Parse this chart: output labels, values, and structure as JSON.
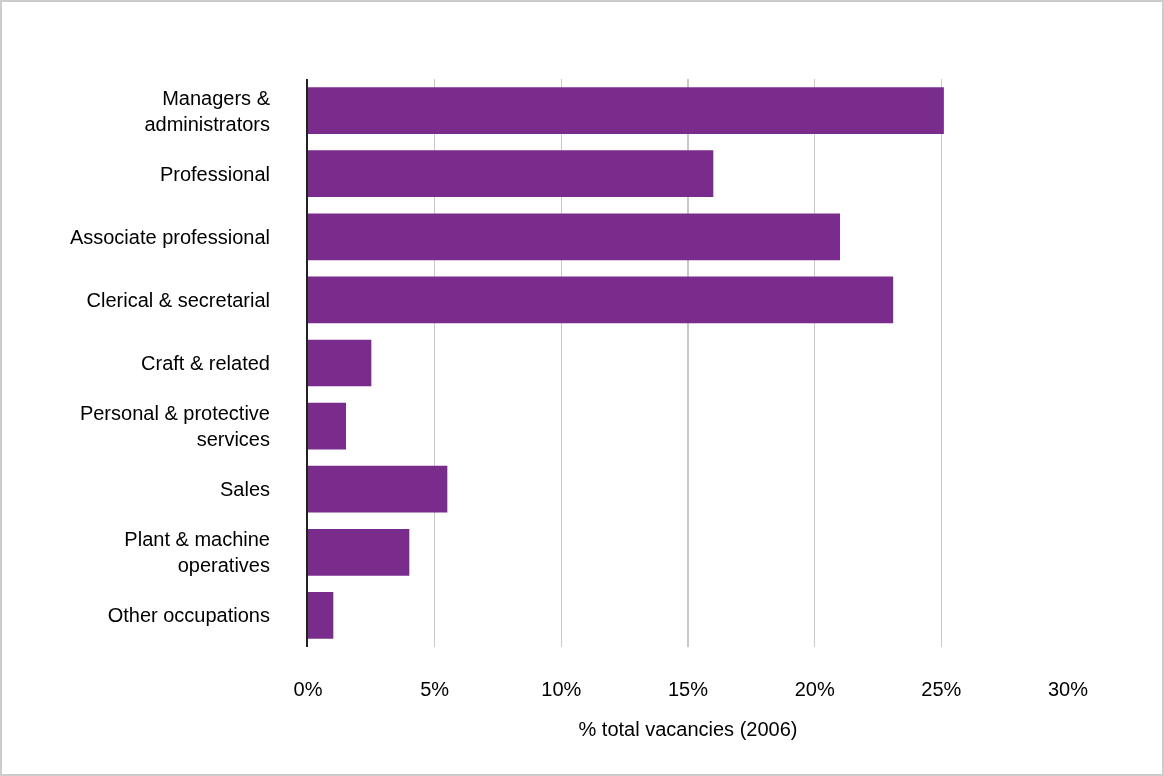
{
  "chart_data": {
    "type": "bar",
    "orientation": "horizontal",
    "xlabel": "% total vacancies (2006)",
    "categories": [
      "Managers & administrators",
      "Professional",
      "Associate professional",
      "Clerical & secretarial",
      "Craft & related",
      "Personal & protective services",
      "Sales",
      "Plant & machine operatives",
      "Other occupations"
    ],
    "values": [
      25.1,
      16,
      21,
      23.1,
      2.5,
      1.5,
      5.5,
      4,
      1
    ],
    "color": "#7a2c8c",
    "xlim": [
      0,
      30
    ],
    "xticks": [
      {
        "value": 0,
        "label": "0%"
      },
      {
        "value": 5,
        "label": "5%"
      },
      {
        "value": 10,
        "label": "10%"
      },
      {
        "value": 15,
        "label": "15%"
      },
      {
        "value": 20,
        "label": "20%"
      },
      {
        "value": 25,
        "label": "25%"
      },
      {
        "value": 30,
        "label": "30%"
      }
    ],
    "grid": "x"
  }
}
